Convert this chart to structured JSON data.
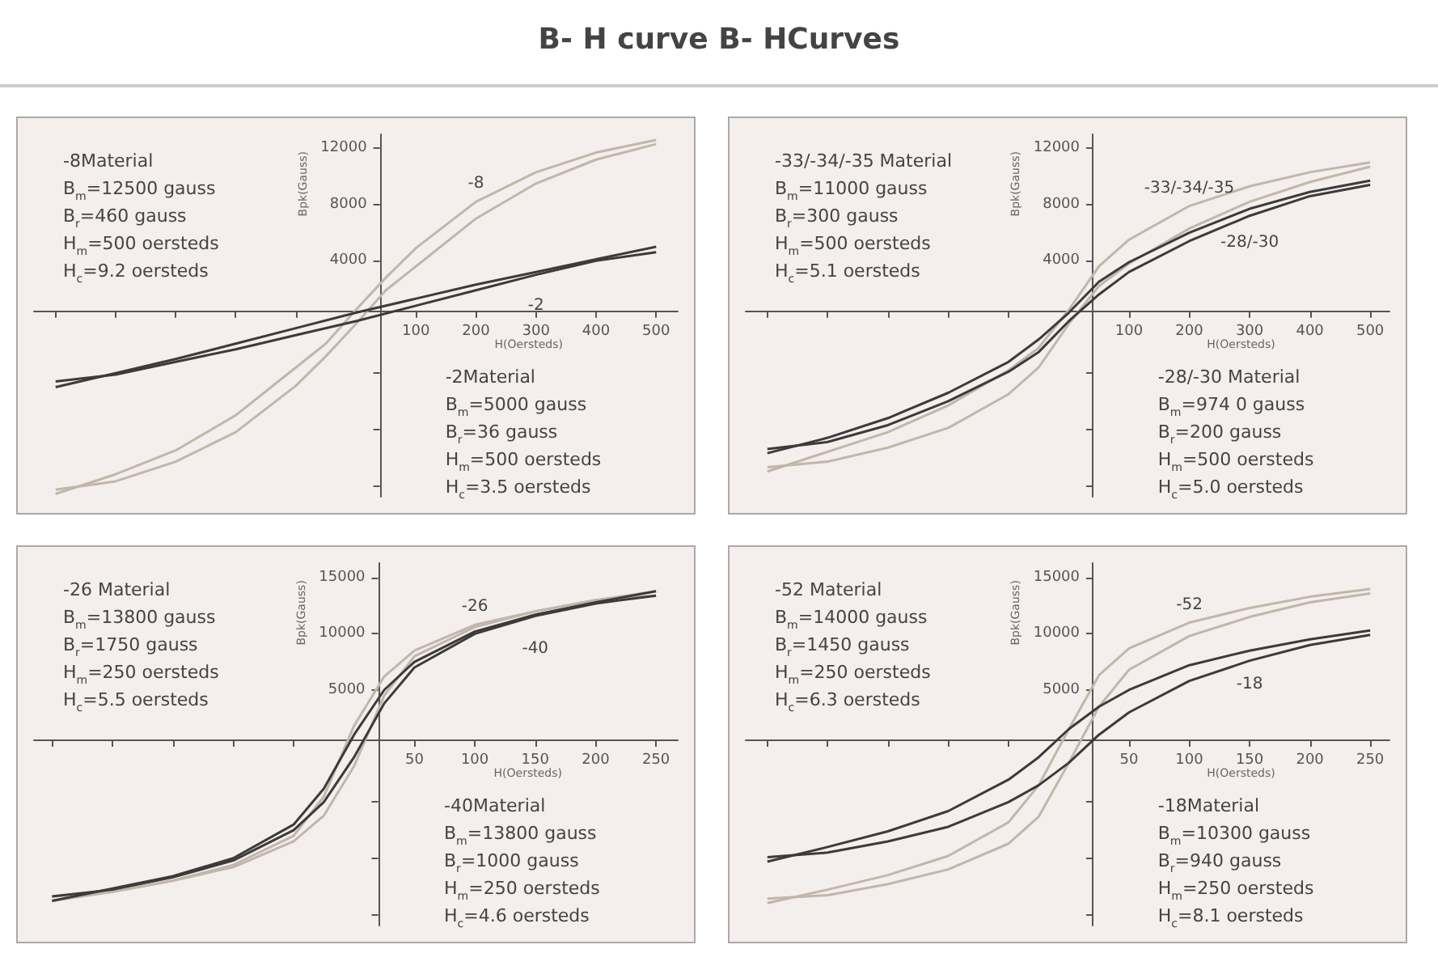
{
  "chart_data": [
    {
      "type": "line",
      "title": "B- H curve B- HCurves",
      "xlabel": "H(Oersteds)",
      "ylabel": "Bpk(Gauss)",
      "marker": "none",
      "grid": false,
      "legend": false,
      "xlim": [
        -536,
        536
      ],
      "ylim": [
        -12800,
        13000
      ],
      "xticks": [
        {
          "value": -500,
          "label": null
        },
        {
          "value": -400,
          "label": null
        },
        {
          "value": -300,
          "label": null
        },
        {
          "value": -200,
          "label": null
        },
        {
          "value": -100,
          "label": null
        },
        100,
        200,
        300,
        400,
        500
      ],
      "yticks": [
        {
          "value": -12000,
          "label": null
        },
        {
          "value": -8000,
          "label": null
        },
        {
          "value": -4000,
          "label": null
        },
        4000,
        8000,
        12000
      ],
      "annotations": [
        "-8Material\nB$_{m}$=12500 gauss\nB$_{r}$=460 gauss\nH$_{m}$=500 oersteds\nH$_{c}$=9.2 oersteds",
        "-2Material\nB$_{m}$=5000 gauss\nB$_{r}$=36 gauss\nH$_{m}$=500 oersteds\nH$_{c}$=3.5 oersteds"
      ],
      "series": [
        {
          "name": "-8",
          "color": "#c2b6aa",
          "x": [
            -500,
            -400,
            -300,
            -200,
            -100,
            -50,
            0,
            50,
            100,
            200,
            300,
            400,
            500
          ],
          "values": [
            -12600,
            -11200,
            -9500,
            -7000,
            -3600,
            -1900,
            500,
            2800,
            4900,
            8200,
            10300,
            11700,
            12600
          ]
        },
        {
          "color": "#c2b6aa",
          "x": [
            -500,
            -400,
            -300,
            -200,
            -100,
            -50,
            0,
            50,
            100,
            200,
            300,
            400,
            500
          ],
          "values": [
            -12300,
            -11700,
            -10300,
            -8200,
            -4900,
            -2800,
            -500,
            1900,
            3600,
            7000,
            9500,
            11200,
            12300
          ]
        },
        {
          "name": "-2",
          "color": "#3e3a3a",
          "x": [
            -500,
            -400,
            -300,
            -200,
            -100,
            0,
            100,
            200,
            300,
            400,
            500
          ],
          "values": [
            -5000,
            -4000,
            -3000,
            -1900,
            -800,
            300,
            1300,
            2300,
            3200,
            4100,
            5000
          ]
        },
        {
          "color": "#3e3a3a",
          "x": [
            -500,
            -400,
            -300,
            -200,
            -100,
            0,
            100,
            200,
            300,
            400,
            500
          ],
          "values": [
            -4600,
            -4100,
            -3200,
            -2300,
            -1300,
            -300,
            800,
            1900,
            3000,
            4000,
            4600
          ]
        }
      ]
    },
    {
      "type": "line",
      "xlabel": "H(Oersteds)",
      "ylabel": "Bpk(Gauss)",
      "marker": "none",
      "grid": false,
      "legend": false,
      "xlim": [
        -536,
        532
      ],
      "ylim": [
        -12800,
        13000
      ],
      "xticks": [
        {
          "value": -500,
          "label": null
        },
        {
          "value": -400,
          "label": null
        },
        {
          "value": -300,
          "label": null
        },
        {
          "value": -200,
          "label": null
        },
        {
          "value": -100,
          "label": null
        },
        100,
        200,
        300,
        400,
        500
      ],
      "yticks": [
        {
          "value": -12000,
          "label": null
        },
        {
          "value": -8000,
          "label": null
        },
        {
          "value": -4000,
          "label": null
        },
        4000,
        8000,
        12000
      ],
      "annotations": [
        "-33/-34/-35 Material\nB$_{m}$=11000 gauss\nB$_{r}$=300 gauss\nH$_{m}$=500 oersteds\nH$_{c}$=5.1 oersteds",
        "-28/-30 Material\nB$_{m}$=974 0 gauss\nB$_{r}$=200 gauss\nH$_{m}$=500 oersteds\nH$_{c}$=5.0 oersteds"
      ],
      "series": [
        {
          "name": "-33/-34/-35",
          "color": "#c2b6aa",
          "x": [
            -500,
            -400,
            -300,
            -200,
            -100,
            -50,
            0,
            50,
            100,
            200,
            300,
            400,
            500
          ],
          "values": [
            -11000,
            -9600,
            -8200,
            -6300,
            -3800,
            -2200,
            500,
            3600,
            5500,
            7900,
            9300,
            10300,
            11000
          ]
        },
        {
          "color": "#c2b6aa",
          "x": [
            -500,
            -400,
            -300,
            -200,
            -100,
            -50,
            0,
            50,
            100,
            200,
            300,
            400,
            500
          ],
          "values": [
            -10700,
            -10300,
            -9300,
            -7900,
            -5500,
            -3600,
            -500,
            2200,
            3800,
            6300,
            8200,
            9600,
            10700
          ]
        },
        {
          "name": "-28/-30",
          "color": "#3e3a3a",
          "x": [
            -500,
            -400,
            -300,
            -200,
            -100,
            -50,
            0,
            50,
            100,
            200,
            300,
            400,
            500
          ],
          "values": [
            -9700,
            -8600,
            -7200,
            -5400,
            -3200,
            -1600,
            300,
            2500,
            3900,
            6000,
            7700,
            8900,
            9700
          ]
        },
        {
          "color": "#3e3a3a",
          "x": [
            -500,
            -400,
            -300,
            -200,
            -100,
            -50,
            0,
            50,
            100,
            200,
            300,
            400,
            500
          ],
          "values": [
            -9400,
            -8900,
            -7700,
            -6000,
            -3900,
            -2500,
            -300,
            1600,
            3200,
            5400,
            7200,
            8600,
            9400
          ]
        }
      ]
    },
    {
      "type": "line",
      "xlabel": "H(Oersteds)",
      "ylabel": "Bpk(Gauss)",
      "marker": "none",
      "grid": false,
      "legend": false,
      "xlim": [
        -265,
        268
      ],
      "ylim": [
        -16000,
        16300
      ],
      "xticks": [
        {
          "value": -250,
          "label": null
        },
        {
          "value": -200,
          "label": null
        },
        {
          "value": -150,
          "label": null
        },
        {
          "value": -100,
          "label": null
        },
        {
          "value": -50,
          "label": null
        },
        50,
        100,
        150,
        200,
        250
      ],
      "yticks": [
        {
          "value": -15000,
          "label": null
        },
        {
          "value": -10000,
          "label": null
        },
        {
          "value": -5000,
          "label": null
        },
        5000,
        10000,
        15000
      ],
      "annotations": [
        "-26 Material\nB$_{m}$=13800 gauss\nB$_{r}$=1750 gauss\nH$_{m}$=250 oersteds\nH$_{c}$=5.5 oersteds",
        "-40Material\nB$_{m}$=13800 gauss\nB$_{r}$=1000 gauss\nH$_{m}$=250 oersteds\nH$_{c}$=4.6 oersteds"
      ],
      "series": [
        {
          "name": "-26",
          "color": "#c2b6aa",
          "x": [
            -250,
            -200,
            -150,
            -100,
            -50,
            -25,
            0,
            25,
            50,
            100,
            150,
            200,
            250
          ],
          "values": [
            -13800,
            -13000,
            -12000,
            -10600,
            -8000,
            -4500,
            1800,
            6200,
            8500,
            10800,
            12000,
            13000,
            13800
          ]
        },
        {
          "color": "#c2b6aa",
          "x": [
            -250,
            -200,
            -150,
            -100,
            -50,
            -25,
            0,
            25,
            50,
            100,
            150,
            200,
            250
          ],
          "values": [
            -13400,
            -13000,
            -12000,
            -10800,
            -8500,
            -6200,
            -1800,
            4500,
            8000,
            10600,
            12000,
            13000,
            13400
          ]
        },
        {
          "name": "-40",
          "color": "#3e3a3a",
          "x": [
            -250,
            -200,
            -150,
            -100,
            -50,
            -25,
            0,
            25,
            50,
            100,
            150,
            200,
            250
          ],
          "values": [
            -13800,
            -12700,
            -11600,
            -10000,
            -7000,
            -3800,
            1000,
            5000,
            7500,
            10200,
            11700,
            12800,
            13800
          ]
        },
        {
          "color": "#3e3a3a",
          "x": [
            -250,
            -200,
            -150,
            -100,
            -50,
            -25,
            0,
            25,
            50,
            100,
            150,
            200,
            250
          ],
          "values": [
            -13400,
            -12800,
            -11700,
            -10200,
            -7500,
            -5000,
            -1000,
            3800,
            7000,
            10000,
            11600,
            12700,
            13400
          ]
        }
      ]
    },
    {
      "type": "line",
      "xlabel": "H(Oersteds)",
      "ylabel": "Bpk(Gauss)",
      "marker": "none",
      "grid": false,
      "legend": false,
      "xlim": [
        -268,
        266
      ],
      "ylim": [
        -16000,
        16300
      ],
      "xticks": [
        {
          "value": -250,
          "label": null
        },
        {
          "value": -200,
          "label": null
        },
        {
          "value": -150,
          "label": null
        },
        {
          "value": -100,
          "label": null
        },
        {
          "value": -50,
          "label": null
        },
        50,
        100,
        150,
        200,
        250
      ],
      "yticks": [
        {
          "value": -15000,
          "label": null
        },
        {
          "value": -10000,
          "label": null
        },
        {
          "value": -5000,
          "label": null
        },
        5000,
        10000,
        15000
      ],
      "annotations": [
        "-52 Material\nB$_{m}$=14000 gauss\nB$_{r}$=1450 gauss\nH$_{m}$=250 oersteds\nH$_{c}$=6.3 oersteds",
        "-18Material\nB$_{m}$=10300 gauss\nB$_{r}$=940 gauss\nH$_{m}$=250 oersteds\nH$_{c}$=8.1 oersteds"
      ],
      "series": [
        {
          "name": "-52",
          "color": "#c2b6aa",
          "x": [
            -250,
            -200,
            -150,
            -100,
            -50,
            -25,
            0,
            25,
            50,
            100,
            150,
            200,
            250
          ],
          "values": [
            -14000,
            -12800,
            -11500,
            -9800,
            -6800,
            -3500,
            1500,
            6300,
            8700,
            11000,
            12300,
            13300,
            14000
          ]
        },
        {
          "color": "#c2b6aa",
          "x": [
            -250,
            -200,
            -150,
            -100,
            -50,
            -25,
            0,
            25,
            50,
            100,
            150,
            200,
            250
          ],
          "values": [
            -13600,
            -13300,
            -12300,
            -11000,
            -8700,
            -6300,
            -1500,
            3500,
            6800,
            9800,
            11500,
            12800,
            13600
          ]
        },
        {
          "name": "-18",
          "color": "#3e3a3a",
          "x": [
            -250,
            -200,
            -150,
            -100,
            -50,
            -25,
            0,
            25,
            50,
            100,
            150,
            200,
            250
          ],
          "values": [
            -10300,
            -9000,
            -7600,
            -5800,
            -3000,
            -1000,
            1500,
            3500,
            5000,
            7200,
            8500,
            9500,
            10300
          ]
        },
        {
          "color": "#3e3a3a",
          "x": [
            -250,
            -200,
            -150,
            -100,
            -50,
            -25,
            0,
            25,
            50,
            100,
            150,
            200,
            250
          ],
          "values": [
            -9900,
            -9500,
            -8500,
            -7200,
            -5000,
            -3500,
            -1500,
            1000,
            3000,
            5800,
            7600,
            9000,
            9900
          ]
        }
      ]
    }
  ]
}
